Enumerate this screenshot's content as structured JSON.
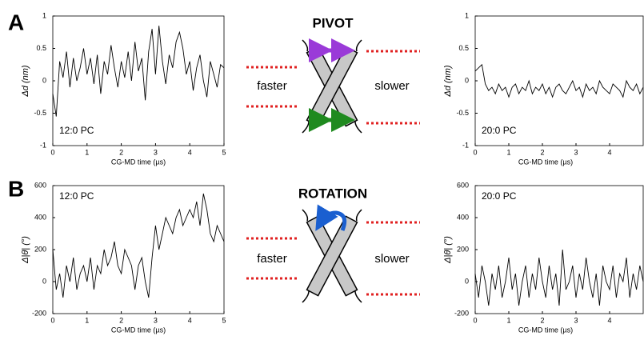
{
  "panels": [
    {
      "label": "A",
      "title": "PIVOT",
      "left_text": "faster",
      "right_text": "slower"
    },
    {
      "label": "B",
      "title": "ROTATION",
      "left_text": "faster",
      "right_text": "slower"
    }
  ],
  "chart_data": [
    {
      "type": "line",
      "annotation": "12:0 PC",
      "xlabel": "CG-MD time (µs)",
      "ylabel": "Δd (nm)",
      "color": "#000000",
      "xlim": [
        0,
        5
      ],
      "xticks": [
        0,
        1,
        2,
        3,
        4,
        5
      ],
      "ylim": [
        -1,
        1
      ],
      "yticks": [
        -1,
        -0.5,
        0,
        0.5,
        1
      ],
      "x": [
        0,
        0.1,
        0.2,
        0.3,
        0.4,
        0.5,
        0.6,
        0.7,
        0.8,
        0.9,
        1,
        1.1,
        1.2,
        1.3,
        1.4,
        1.5,
        1.6,
        1.7,
        1.8,
        1.9,
        2,
        2.1,
        2.2,
        2.3,
        2.4,
        2.5,
        2.6,
        2.7,
        2.8,
        2.9,
        3,
        3.1,
        3.2,
        3.3,
        3.4,
        3.5,
        3.6,
        3.7,
        3.8,
        3.9,
        4,
        4.1,
        4.2,
        4.3,
        4.4,
        4.5,
        4.6,
        4.7,
        4.8,
        4.9,
        5
      ],
      "values": [
        -0.2,
        -0.55,
        0.3,
        0.05,
        0.45,
        -0.1,
        0.35,
        0.0,
        0.2,
        0.5,
        0.1,
        0.35,
        -0.05,
        0.4,
        -0.2,
        0.3,
        0.1,
        0.55,
        0.2,
        -0.1,
        0.3,
        0.05,
        0.45,
        0.0,
        0.6,
        0.15,
        0.35,
        -0.3,
        0.45,
        0.8,
        0.1,
        0.85,
        0.3,
        -0.05,
        0.4,
        0.2,
        0.6,
        0.75,
        0.5,
        0.1,
        0.3,
        -0.15,
        0.2,
        0.4,
        0.0,
        -0.25,
        0.3,
        0.1,
        -0.1,
        0.25,
        0.2
      ]
    },
    {
      "type": "line",
      "annotation": "20:0 PC",
      "xlabel": "CG-MD time (µs)",
      "ylabel": "Δd (nm)",
      "color": "#000000",
      "xlim": [
        0,
        5
      ],
      "xticks": [
        0,
        1,
        2,
        3,
        4
      ],
      "ylim": [
        -1,
        1
      ],
      "yticks": [
        -1,
        -0.5,
        0,
        0.5,
        1
      ],
      "x": [
        0,
        0.1,
        0.2,
        0.3,
        0.4,
        0.5,
        0.6,
        0.7,
        0.8,
        0.9,
        1,
        1.1,
        1.2,
        1.3,
        1.4,
        1.5,
        1.6,
        1.7,
        1.8,
        1.9,
        2,
        2.1,
        2.2,
        2.3,
        2.4,
        2.5,
        2.6,
        2.7,
        2.8,
        2.9,
        3,
        3.1,
        3.2,
        3.3,
        3.4,
        3.5,
        3.6,
        3.7,
        3.8,
        3.9,
        4,
        4.1,
        4.2,
        4.3,
        4.4,
        4.5,
        4.6,
        4.7,
        4.8,
        4.9,
        5
      ],
      "values": [
        0.15,
        0.2,
        0.25,
        -0.05,
        -0.15,
        -0.1,
        -0.2,
        -0.05,
        -0.15,
        -0.1,
        -0.25,
        -0.1,
        -0.05,
        -0.2,
        -0.1,
        -0.15,
        0.0,
        -0.2,
        -0.1,
        -0.15,
        -0.05,
        -0.2,
        -0.1,
        -0.25,
        -0.1,
        -0.05,
        -0.15,
        -0.2,
        -0.1,
        0.0,
        -0.15,
        -0.1,
        -0.25,
        -0.05,
        -0.15,
        -0.1,
        -0.2,
        0.0,
        -0.1,
        -0.15,
        -0.2,
        -0.05,
        -0.1,
        -0.15,
        -0.25,
        0.0,
        -0.1,
        -0.15,
        -0.05,
        -0.2,
        -0.1
      ]
    },
    {
      "type": "line",
      "annotation": "12:0 PC",
      "xlabel": "CG-MD time (µs)",
      "ylabel": "Δ|θ| (°)",
      "color": "#000000",
      "xlim": [
        0,
        5
      ],
      "xticks": [
        0,
        1,
        2,
        3,
        4,
        5
      ],
      "ylim": [
        -200,
        600
      ],
      "yticks": [
        -200,
        0,
        200,
        400,
        600
      ],
      "x": [
        0,
        0.1,
        0.2,
        0.3,
        0.4,
        0.5,
        0.6,
        0.7,
        0.8,
        0.9,
        1,
        1.1,
        1.2,
        1.3,
        1.4,
        1.5,
        1.6,
        1.7,
        1.8,
        1.9,
        2,
        2.1,
        2.2,
        2.3,
        2.4,
        2.5,
        2.6,
        2.7,
        2.8,
        2.9,
        3,
        3.1,
        3.2,
        3.3,
        3.4,
        3.5,
        3.6,
        3.7,
        3.8,
        3.9,
        4,
        4.1,
        4.2,
        4.3,
        4.4,
        4.5,
        4.6,
        4.7,
        4.8,
        4.9,
        5
      ],
      "values": [
        200,
        -50,
        50,
        -100,
        100,
        0,
        150,
        -50,
        50,
        100,
        0,
        150,
        -50,
        100,
        50,
        200,
        100,
        150,
        250,
        100,
        50,
        200,
        150,
        100,
        -50,
        100,
        150,
        0,
        -100,
        150,
        350,
        200,
        300,
        400,
        350,
        300,
        400,
        450,
        350,
        400,
        450,
        400,
        500,
        350,
        550,
        450,
        300,
        250,
        350,
        300,
        250
      ]
    },
    {
      "type": "line",
      "annotation": "20:0 PC",
      "xlabel": "CG-MD time (µs)",
      "ylabel": "Δ|θ| (°)",
      "color": "#000000",
      "xlim": [
        0,
        5
      ],
      "xticks": [
        0,
        1,
        2,
        3,
        4
      ],
      "ylim": [
        -200,
        600
      ],
      "yticks": [
        -200,
        0,
        200,
        400,
        600
      ],
      "x": [
        0,
        0.1,
        0.2,
        0.3,
        0.4,
        0.5,
        0.6,
        0.7,
        0.8,
        0.9,
        1,
        1.1,
        1.2,
        1.3,
        1.4,
        1.5,
        1.6,
        1.7,
        1.8,
        1.9,
        2,
        2.1,
        2.2,
        2.3,
        2.4,
        2.5,
        2.6,
        2.7,
        2.8,
        2.9,
        3,
        3.1,
        3.2,
        3.3,
        3.4,
        3.5,
        3.6,
        3.7,
        3.8,
        3.9,
        4,
        4.1,
        4.2,
        4.3,
        4.4,
        4.5,
        4.6,
        4.7,
        4.8,
        4.9,
        5
      ],
      "values": [
        50,
        -100,
        100,
        0,
        -150,
        50,
        -50,
        100,
        -100,
        0,
        150,
        -50,
        50,
        -150,
        0,
        100,
        -100,
        50,
        -50,
        150,
        0,
        -100,
        100,
        -50,
        50,
        -150,
        200,
        -50,
        0,
        100,
        -100,
        50,
        -50,
        150,
        0,
        -100,
        50,
        -150,
        100,
        0,
        -50,
        100,
        -100,
        50,
        0,
        150,
        -100,
        50,
        -50,
        100,
        0
      ]
    }
  ]
}
